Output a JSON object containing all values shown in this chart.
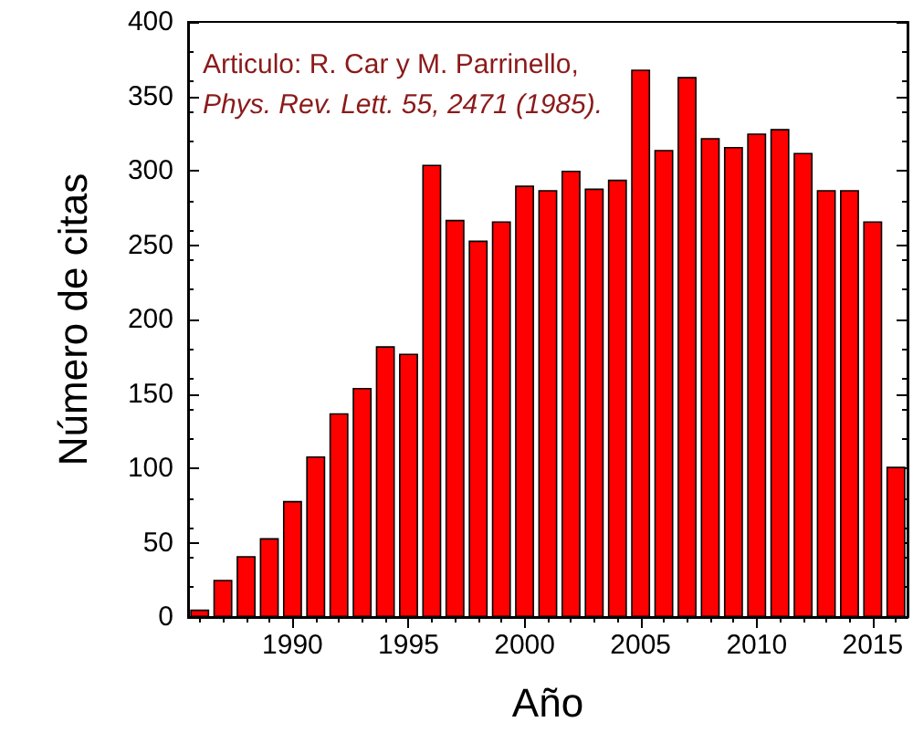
{
  "chart_data": {
    "type": "bar",
    "xlabel": "Año",
    "ylabel": "Número de citas",
    "x": [
      1986,
      1987,
      1988,
      1989,
      1990,
      1991,
      1992,
      1993,
      1994,
      1995,
      1996,
      1997,
      1998,
      1999,
      2000,
      2001,
      2002,
      2003,
      2004,
      2005,
      2006,
      2007,
      2008,
      2009,
      2010,
      2011,
      2012,
      2013,
      2014,
      2015,
      2016
    ],
    "values": [
      5,
      25,
      41,
      53,
      78,
      108,
      137,
      154,
      182,
      177,
      304,
      267,
      253,
      266,
      290,
      287,
      300,
      288,
      294,
      368,
      314,
      363,
      322,
      316,
      325,
      328,
      312,
      287,
      287,
      266,
      101
    ],
    "color": "#ff0000",
    "xlim": [
      1985.5,
      2016.5
    ],
    "xticks": [
      1990,
      1995,
      2000,
      2005,
      2010,
      2015
    ],
    "ylim": [
      0,
      400
    ],
    "yticks": [
      0,
      50,
      100,
      150,
      200,
      250,
      300,
      350,
      400
    ],
    "grid": false,
    "annotations": [
      "Articulo: R. Car y M. Parrinello,",
      "Phys. Rev. Lett. 55, 2471 (1985)."
    ]
  }
}
